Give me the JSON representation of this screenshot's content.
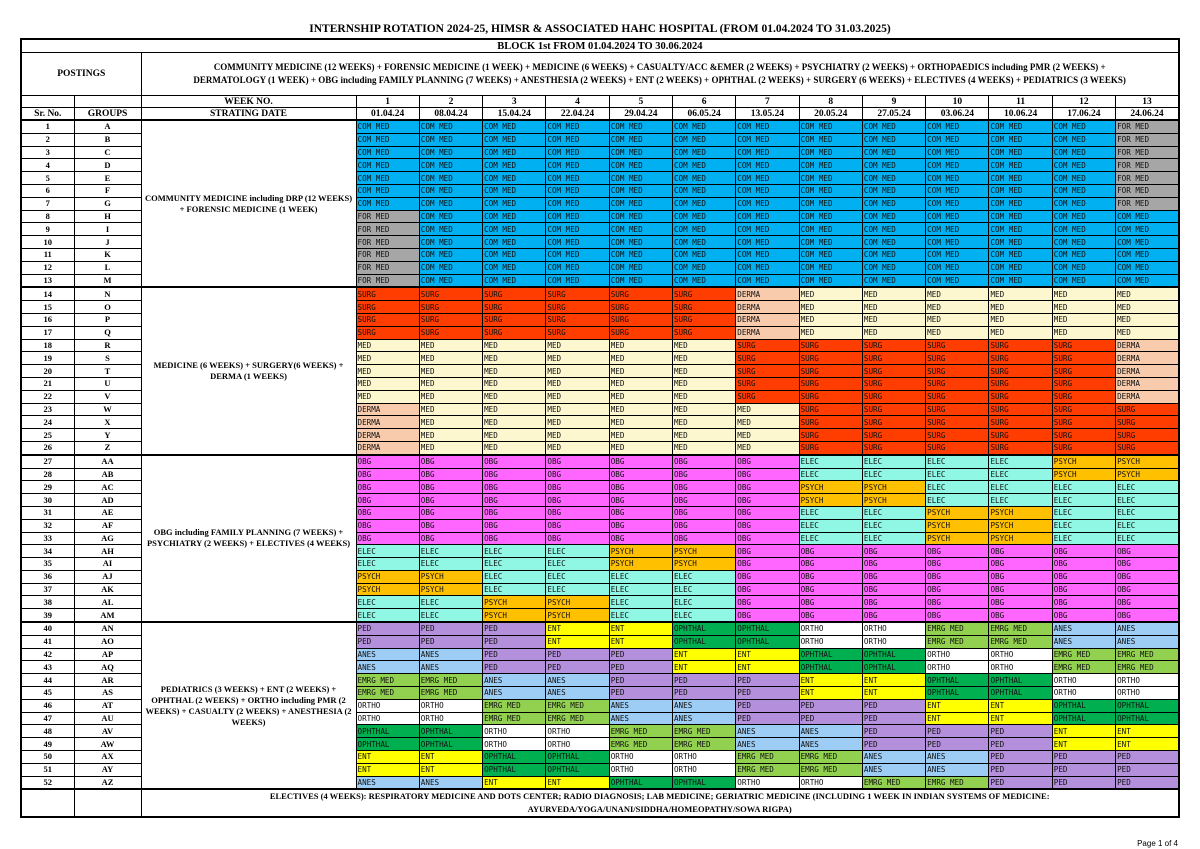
{
  "title": "INTERNSHIP ROTATION 2024-25, HIMSR & ASSOCIATED HAHC HOSPITAL (FROM 01.04.2024 TO 31.03.2025)",
  "block": "BLOCK 1st FROM 01.04.2024 TO 30.06.2024",
  "postings_label": "POSTINGS",
  "postings_text": "COMMUNITY MEDICINE (12 WEEKS) + FORENSIC MEDICINE (1 WEEK) + MEDICINE (6 WEEKS) + CASUALTY/ACC &EMER (2 WEEKS) + PSYCHIATRY (2 WEEKS) + ORTHOPAEDICS including PMR (2 WEEKS) + DERMATOLOGY (1 WEEK) + OBG including FAMILY PLANNING (7 WEEKS) + ANESTHESIA (2 WEEKS) + ENT (2 WEEKS) + OPHTHAL (2 WEEKS) + SURGERY (6 WEEKS) + ELECTIVES (4 WEEKS) + PEDIATRICS (3 WEEKS)",
  "week_no_label": "WEEK NO.",
  "start_date_label": "STRATING DATE",
  "sr_label": "Sr. No.",
  "groups_label": "GROUPS",
  "weeks": [
    "1",
    "2",
    "3",
    "4",
    "5",
    "6",
    "7",
    "8",
    "9",
    "10",
    "11",
    "12",
    "13"
  ],
  "dates": [
    "01.04.24",
    "08.04.24",
    "15.04.24",
    "22.04.24",
    "29.04.24",
    "06.05.24",
    "13.05.24",
    "20.05.24",
    "27.05.24",
    "03.06.24",
    "10.06.24",
    "17.06.24",
    "24.06.24"
  ],
  "postings_blocks": [
    "COMMUNITY MEDICINE including DRP (12 WEEKS) + FORENSIC MEDICINE (1 WEEK)",
    "MEDICINE (6 WEEKS) + SURGERY(6 WEEKS) + DERMA (1 WEEKS)",
    "OBG including FAMILY PLANNING (7 WEEKS) + PSYCHIATRY (2 WEEKS) + ELECTIVES (4 WEEKS)",
    "PEDIATRICS (3 WEEKS) + ENT (2 WEEKS) + OPHTHAL (2 WEEKS) + ORTHO including PMR (2 WEEKS) + CASUALTY (2 WEEKS) + ANESTHESIA (2 WEEKS)"
  ],
  "colors": {
    "COM MED": "#00B0F0",
    "FOR MED": "#A6A6A6",
    "SURG": "#FF3D00",
    "DERMA": "#F8CBAD",
    "MED": "#FCF7CF",
    "OBG": "#FF66FF",
    "ELEC": "#8FF7E3",
    "PSYCH": "#FFC000",
    "PED": "#B490DC",
    "ENT": "#FFFF00",
    "OPHTHAL": "#00B050",
    "ORTHO": "#FFFFFF",
    "EMRG MED": "#92D050",
    "ANES": "#9DCDF5"
  },
  "rows": [
    {
      "sr": "1",
      "group": "A",
      "cells": [
        "COM MED",
        "COM MED",
        "COM MED",
        "COM MED",
        "COM MED",
        "COM MED",
        "COM MED",
        "COM MED",
        "COM MED",
        "COM MED",
        "COM MED",
        "COM MED",
        "FOR MED"
      ]
    },
    {
      "sr": "2",
      "group": "B",
      "cells": [
        "COM MED",
        "COM MED",
        "COM MED",
        "COM MED",
        "COM MED",
        "COM MED",
        "COM MED",
        "COM MED",
        "COM MED",
        "COM MED",
        "COM MED",
        "COM MED",
        "FOR MED"
      ]
    },
    {
      "sr": "3",
      "group": "C",
      "cells": [
        "COM MED",
        "COM MED",
        "COM MED",
        "COM MED",
        "COM MED",
        "COM MED",
        "COM MED",
        "COM MED",
        "COM MED",
        "COM MED",
        "COM MED",
        "COM MED",
        "FOR MED"
      ]
    },
    {
      "sr": "4",
      "group": "D",
      "cells": [
        "COM MED",
        "COM MED",
        "COM MED",
        "COM MED",
        "COM MED",
        "COM MED",
        "COM MED",
        "COM MED",
        "COM MED",
        "COM MED",
        "COM MED",
        "COM MED",
        "FOR MED"
      ]
    },
    {
      "sr": "5",
      "group": "E",
      "cells": [
        "COM MED",
        "COM MED",
        "COM MED",
        "COM MED",
        "COM MED",
        "COM MED",
        "COM MED",
        "COM MED",
        "COM MED",
        "COM MED",
        "COM MED",
        "COM MED",
        "FOR MED"
      ]
    },
    {
      "sr": "6",
      "group": "F",
      "cells": [
        "COM MED",
        "COM MED",
        "COM MED",
        "COM MED",
        "COM MED",
        "COM MED",
        "COM MED",
        "COM MED",
        "COM MED",
        "COM MED",
        "COM MED",
        "COM MED",
        "FOR MED"
      ]
    },
    {
      "sr": "7",
      "group": "G",
      "cells": [
        "COM MED",
        "COM MED",
        "COM MED",
        "COM MED",
        "COM MED",
        "COM MED",
        "COM MED",
        "COM MED",
        "COM MED",
        "COM MED",
        "COM MED",
        "COM MED",
        "FOR MED"
      ]
    },
    {
      "sr": "8",
      "group": "H",
      "cells": [
        "FOR MED",
        "COM MED",
        "COM MED",
        "COM MED",
        "COM MED",
        "COM MED",
        "COM MED",
        "COM MED",
        "COM MED",
        "COM MED",
        "COM MED",
        "COM MED",
        "COM MED"
      ]
    },
    {
      "sr": "9",
      "group": "I",
      "cells": [
        "FOR MED",
        "COM MED",
        "COM MED",
        "COM MED",
        "COM MED",
        "COM MED",
        "COM MED",
        "COM MED",
        "COM MED",
        "COM MED",
        "COM MED",
        "COM MED",
        "COM MED"
      ]
    },
    {
      "sr": "10",
      "group": "J",
      "cells": [
        "FOR MED",
        "COM MED",
        "COM MED",
        "COM MED",
        "COM MED",
        "COM MED",
        "COM MED",
        "COM MED",
        "COM MED",
        "COM MED",
        "COM MED",
        "COM MED",
        "COM MED"
      ]
    },
    {
      "sr": "11",
      "group": "K",
      "cells": [
        "FOR MED",
        "COM MED",
        "COM MED",
        "COM MED",
        "COM MED",
        "COM MED",
        "COM MED",
        "COM MED",
        "COM MED",
        "COM MED",
        "COM MED",
        "COM MED",
        "COM MED"
      ]
    },
    {
      "sr": "12",
      "group": "L",
      "cells": [
        "FOR MED",
        "COM MED",
        "COM MED",
        "COM MED",
        "COM MED",
        "COM MED",
        "COM MED",
        "COM MED",
        "COM MED",
        "COM MED",
        "COM MED",
        "COM MED",
        "COM MED"
      ]
    },
    {
      "sr": "13",
      "group": "M",
      "cells": [
        "FOR MED",
        "COM MED",
        "COM MED",
        "COM MED",
        "COM MED",
        "COM MED",
        "COM MED",
        "COM MED",
        "COM MED",
        "COM MED",
        "COM MED",
        "COM MED",
        "COM MED"
      ]
    },
    {
      "sr": "14",
      "group": "N",
      "cells": [
        "SURG",
        "SURG",
        "SURG",
        "SURG",
        "SURG",
        "SURG",
        "DERMA",
        "MED",
        "MED",
        "MED",
        "MED",
        "MED",
        "MED"
      ]
    },
    {
      "sr": "15",
      "group": "O",
      "cells": [
        "SURG",
        "SURG",
        "SURG",
        "SURG",
        "SURG",
        "SURG",
        "DERMA",
        "MED",
        "MED",
        "MED",
        "MED",
        "MED",
        "MED"
      ]
    },
    {
      "sr": "16",
      "group": "P",
      "cells": [
        "SURG",
        "SURG",
        "SURG",
        "SURG",
        "SURG",
        "SURG",
        "DERMA",
        "MED",
        "MED",
        "MED",
        "MED",
        "MED",
        "MED"
      ]
    },
    {
      "sr": "17",
      "group": "Q",
      "cells": [
        "SURG",
        "SURG",
        "SURG",
        "SURG",
        "SURG",
        "SURG",
        "DERMA",
        "MED",
        "MED",
        "MED",
        "MED",
        "MED",
        "MED"
      ]
    },
    {
      "sr": "18",
      "group": "R",
      "cells": [
        "MED",
        "MED",
        "MED",
        "MED",
        "MED",
        "MED",
        "SURG",
        "SURG",
        "SURG",
        "SURG",
        "SURG",
        "SURG",
        "DERMA"
      ]
    },
    {
      "sr": "19",
      "group": "S",
      "cells": [
        "MED",
        "MED",
        "MED",
        "MED",
        "MED",
        "MED",
        "SURG",
        "SURG",
        "SURG",
        "SURG",
        "SURG",
        "SURG",
        "DERMA"
      ]
    },
    {
      "sr": "20",
      "group": "T",
      "cells": [
        "MED",
        "MED",
        "MED",
        "MED",
        "MED",
        "MED",
        "SURG",
        "SURG",
        "SURG",
        "SURG",
        "SURG",
        "SURG",
        "DERMA"
      ]
    },
    {
      "sr": "21",
      "group": "U",
      "cells": [
        "MED",
        "MED",
        "MED",
        "MED",
        "MED",
        "MED",
        "SURG",
        "SURG",
        "SURG",
        "SURG",
        "SURG",
        "SURG",
        "DERMA"
      ]
    },
    {
      "sr": "22",
      "group": "V",
      "cells": [
        "MED",
        "MED",
        "MED",
        "MED",
        "MED",
        "MED",
        "SURG",
        "SURG",
        "SURG",
        "SURG",
        "SURG",
        "SURG",
        "DERMA"
      ]
    },
    {
      "sr": "23",
      "group": "W",
      "cells": [
        "DERMA",
        "MED",
        "MED",
        "MED",
        "MED",
        "MED",
        "MED",
        "SURG",
        "SURG",
        "SURG",
        "SURG",
        "SURG",
        "SURG"
      ]
    },
    {
      "sr": "24",
      "group": "X",
      "cells": [
        "DERMA",
        "MED",
        "MED",
        "MED",
        "MED",
        "MED",
        "MED",
        "SURG",
        "SURG",
        "SURG",
        "SURG",
        "SURG",
        "SURG"
      ]
    },
    {
      "sr": "25",
      "group": "Y",
      "cells": [
        "DERMA",
        "MED",
        "MED",
        "MED",
        "MED",
        "MED",
        "MED",
        "SURG",
        "SURG",
        "SURG",
        "SURG",
        "SURG",
        "SURG"
      ]
    },
    {
      "sr": "26",
      "group": "Z",
      "cells": [
        "DERMA",
        "MED",
        "MED",
        "MED",
        "MED",
        "MED",
        "MED",
        "SURG",
        "SURG",
        "SURG",
        "SURG",
        "SURG",
        "SURG"
      ]
    },
    {
      "sr": "27",
      "group": "AA",
      "cells": [
        "OBG",
        "OBG",
        "OBG",
        "OBG",
        "OBG",
        "OBG",
        "OBG",
        "ELEC",
        "ELEC",
        "ELEC",
        "ELEC",
        "PSYCH",
        "PSYCH"
      ]
    },
    {
      "sr": "28",
      "group": "AB",
      "cells": [
        "OBG",
        "OBG",
        "OBG",
        "OBG",
        "OBG",
        "OBG",
        "OBG",
        "ELEC",
        "ELEC",
        "ELEC",
        "ELEC",
        "PSYCH",
        "PSYCH"
      ]
    },
    {
      "sr": "29",
      "group": "AC",
      "cells": [
        "OBG",
        "OBG",
        "OBG",
        "OBG",
        "OBG",
        "OBG",
        "OBG",
        "PSYCH",
        "PSYCH",
        "ELEC",
        "ELEC",
        "ELEC",
        "ELEC"
      ]
    },
    {
      "sr": "30",
      "group": "AD",
      "cells": [
        "OBG",
        "OBG",
        "OBG",
        "OBG",
        "OBG",
        "OBG",
        "OBG",
        "PSYCH",
        "PSYCH",
        "ELEC",
        "ELEC",
        "ELEC",
        "ELEC"
      ]
    },
    {
      "sr": "31",
      "group": "AE",
      "cells": [
        "OBG",
        "OBG",
        "OBG",
        "OBG",
        "OBG",
        "OBG",
        "OBG",
        "ELEC",
        "ELEC",
        "PSYCH",
        "PSYCH",
        "ELEC",
        "ELEC"
      ]
    },
    {
      "sr": "32",
      "group": "AF",
      "cells": [
        "OBG",
        "OBG",
        "OBG",
        "OBG",
        "OBG",
        "OBG",
        "OBG",
        "ELEC",
        "ELEC",
        "PSYCH",
        "PSYCH",
        "ELEC",
        "ELEC"
      ]
    },
    {
      "sr": "33",
      "group": "AG",
      "cells": [
        "OBG",
        "OBG",
        "OBG",
        "OBG",
        "OBG",
        "OBG",
        "OBG",
        "ELEC",
        "ELEC",
        "PSYCH",
        "PSYCH",
        "ELEC",
        "ELEC"
      ]
    },
    {
      "sr": "34",
      "group": "AH",
      "cells": [
        "ELEC",
        "ELEC",
        "ELEC",
        "ELEC",
        "PSYCH",
        "PSYCH",
        "OBG",
        "OBG",
        "OBG",
        "OBG",
        "OBG",
        "OBG",
        "OBG"
      ]
    },
    {
      "sr": "35",
      "group": "AI",
      "cells": [
        "ELEC",
        "ELEC",
        "ELEC",
        "ELEC",
        "PSYCH",
        "PSYCH",
        "OBG",
        "OBG",
        "OBG",
        "OBG",
        "OBG",
        "OBG",
        "OBG"
      ]
    },
    {
      "sr": "36",
      "group": "AJ",
      "cells": [
        "PSYCH",
        "PSYCH",
        "ELEC",
        "ELEC",
        "ELEC",
        "ELEC",
        "OBG",
        "OBG",
        "OBG",
        "OBG",
        "OBG",
        "OBG",
        "OBG"
      ]
    },
    {
      "sr": "37",
      "group": "AK",
      "cells": [
        "PSYCH",
        "PSYCH",
        "ELEC",
        "ELEC",
        "ELEC",
        "ELEC",
        "OBG",
        "OBG",
        "OBG",
        "OBG",
        "OBG",
        "OBG",
        "OBG"
      ]
    },
    {
      "sr": "38",
      "group": "AL",
      "cells": [
        "ELEC",
        "ELEC",
        "PSYCH",
        "PSYCH",
        "ELEC",
        "ELEC",
        "OBG",
        "OBG",
        "OBG",
        "OBG",
        "OBG",
        "OBG",
        "OBG"
      ]
    },
    {
      "sr": "39",
      "group": "AM",
      "cells": [
        "ELEC",
        "ELEC",
        "PSYCH",
        "PSYCH",
        "ELEC",
        "ELEC",
        "OBG",
        "OBG",
        "OBG",
        "OBG",
        "OBG",
        "OBG",
        "OBG"
      ]
    },
    {
      "sr": "40",
      "group": "AN",
      "cells": [
        "PED",
        "PED",
        "PED",
        "ENT",
        "ENT",
        "OPHTHAL",
        "OPHTHAL",
        "ORTHO",
        "ORTHO",
        "EMRG MED",
        "EMRG MED",
        "ANES",
        "ANES"
      ]
    },
    {
      "sr": "41",
      "group": "AO",
      "cells": [
        "PED",
        "PED",
        "PED",
        "ENT",
        "ENT",
        "OPHTHAL",
        "OPHTHAL",
        "ORTHO",
        "ORTHO",
        "EMRG MED",
        "EMRG MED",
        "ANES",
        "ANES"
      ]
    },
    {
      "sr": "42",
      "group": "AP",
      "cells": [
        "ANES",
        "ANES",
        "PED",
        "PED",
        "PED",
        "ENT",
        "ENT",
        "OPHTHAL",
        "OPHTHAL",
        "ORTHO",
        "ORTHO",
        "EMRG MED",
        "EMRG MED"
      ]
    },
    {
      "sr": "43",
      "group": "AQ",
      "cells": [
        "ANES",
        "ANES",
        "PED",
        "PED",
        "PED",
        "ENT",
        "ENT",
        "OPHTHAL",
        "OPHTHAL",
        "ORTHO",
        "ORTHO",
        "EMRG MED",
        "EMRG MED"
      ]
    },
    {
      "sr": "44",
      "group": "AR",
      "cells": [
        "EMRG MED",
        "EMRG MED",
        "ANES",
        "ANES",
        "PED",
        "PED",
        "PED",
        "ENT",
        "ENT",
        "OPHTHAL",
        "OPHTHAL",
        "ORTHO",
        "ORTHO"
      ]
    },
    {
      "sr": "45",
      "group": "AS",
      "cells": [
        "EMRG MED",
        "EMRG MED",
        "ANES",
        "ANES",
        "PED",
        "PED",
        "PED",
        "ENT",
        "ENT",
        "OPHTHAL",
        "OPHTHAL",
        "ORTHO",
        "ORTHO"
      ]
    },
    {
      "sr": "46",
      "group": "AT",
      "cells": [
        "ORTHO",
        "ORTHO",
        "EMRG MED",
        "EMRG MED",
        "ANES",
        "ANES",
        "PED",
        "PED",
        "PED",
        "ENT",
        "ENT",
        "OPHTHAL",
        "OPHTHAL"
      ]
    },
    {
      "sr": "47",
      "group": "AU",
      "cells": [
        "ORTHO",
        "ORTHO",
        "EMRG MED",
        "EMRG MED",
        "ANES",
        "ANES",
        "PED",
        "PED",
        "PED",
        "ENT",
        "ENT",
        "OPHTHAL",
        "OPHTHAL"
      ]
    },
    {
      "sr": "48",
      "group": "AV",
      "cells": [
        "OPHTHAL",
        "OPHTHAL",
        "ORTHO",
        "ORTHO",
        "EMRG MED",
        "EMRG MED",
        "ANES",
        "ANES",
        "PED",
        "PED",
        "PED",
        "ENT",
        "ENT"
      ]
    },
    {
      "sr": "49",
      "group": "AW",
      "cells": [
        "OPHTHAL",
        "OPHTHAL",
        "ORTHO",
        "ORTHO",
        "EMRG MED",
        "EMRG MED",
        "ANES",
        "ANES",
        "PED",
        "PED",
        "PED",
        "ENT",
        "ENT"
      ]
    },
    {
      "sr": "50",
      "group": "AX",
      "cells": [
        "ENT",
        "ENT",
        "OPHTHAL",
        "OPHTHAL",
        "ORTHO",
        "ORTHO",
        "EMRG MED",
        "EMRG MED",
        "ANES",
        "ANES",
        "PED",
        "PED",
        "PED"
      ]
    },
    {
      "sr": "51",
      "group": "AY",
      "cells": [
        "ENT",
        "ENT",
        "OPHTHAL",
        "OPHTHAL",
        "ORTHO",
        "ORTHO",
        "EMRG MED",
        "EMRG MED",
        "ANES",
        "ANES",
        "PED",
        "PED",
        "PED"
      ]
    },
    {
      "sr": "52",
      "group": "AZ",
      "cells": [
        "ANES",
        "ANES",
        "ENT",
        "ENT",
        "OPHTHAL",
        "OPHTHAL",
        "ORTHO",
        "ORTHO",
        "EMRG MED",
        "EMRG MED",
        "PED",
        "PED",
        "PED"
      ]
    }
  ],
  "electives_note": "ELECTIVES (4 WEEKS): RESPIRATORY MEDICINE AND DOTS CENTER; RADIO DIAGNOSIS; LAB MEDICINE; GERIATRIC MEDICINE (INCLUDING 1 WEEK IN INDIAN SYSTEMS OF MEDICINE: AYURVEDA/YOGA/UNANI/SIDDHA/HOMEOPATHY/SOWA RIGPA)",
  "page_label": "Page 1 of 4"
}
